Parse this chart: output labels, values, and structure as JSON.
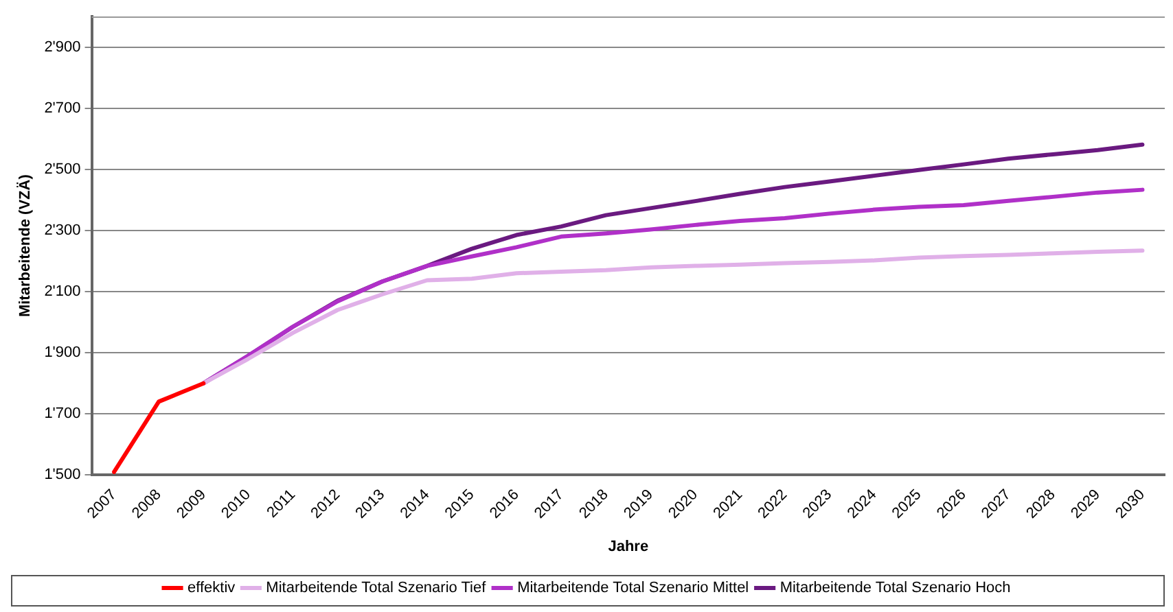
{
  "chart_data": {
    "type": "line",
    "xlabel": "Jahre",
    "ylabel": "Mitarbeitende (VZÄ)",
    "categories": [
      "2007",
      "2008",
      "2009",
      "2010",
      "2011",
      "2012",
      "2013",
      "2014",
      "2015",
      "2016",
      "2017",
      "2018",
      "2019",
      "2020",
      "2021",
      "2022",
      "2023",
      "2024",
      "2025",
      "2026",
      "2027",
      "2028",
      "2029",
      "2030"
    ],
    "ylim": [
      1500,
      3000
    ],
    "yticks": [
      {
        "value": 1500,
        "label": "1'500"
      },
      {
        "value": 1700,
        "label": "1'700"
      },
      {
        "value": 1900,
        "label": "1'900"
      },
      {
        "value": 2100,
        "label": "2'100"
      },
      {
        "value": 2300,
        "label": "2'300"
      },
      {
        "value": 2500,
        "label": "2'500"
      },
      {
        "value": 2700,
        "label": "2'700"
      },
      {
        "value": 2900,
        "label": "2'900"
      }
    ],
    "grid": "y",
    "legend": "bottom",
    "line_style": "solid",
    "marker": "none",
    "series": [
      {
        "name": "effektiv",
        "color": "#ff0000",
        "values": [
          1510,
          1740,
          1800,
          null,
          null,
          null,
          null,
          null,
          null,
          null,
          null,
          null,
          null,
          null,
          null,
          null,
          null,
          null,
          null,
          null,
          null,
          null,
          null,
          null
        ]
      },
      {
        "name": "Mitarbeitende Total Szenario Tief",
        "color": "#e0b0e8",
        "values": [
          null,
          null,
          1800,
          1880,
          1965,
          2040,
          2091,
          2137,
          2142,
          2160,
          2165,
          2170,
          2179,
          2184,
          2188,
          2193,
          2197,
          2202,
          2211,
          2216,
          2220,
          2225,
          2230,
          2234
        ]
      },
      {
        "name": "Mitarbeitende Total Szenario Mittel",
        "color": "#b030c8",
        "values": [
          null,
          null,
          1800,
          1890,
          1985,
          2068,
          2133,
          2184,
          2215,
          2245,
          2280,
          2290,
          2303,
          2318,
          2331,
          2340,
          2355,
          2368,
          2377,
          2383,
          2397,
          2410,
          2424,
          2433
        ]
      },
      {
        "name": "Mitarbeitende Total Szenario Hoch",
        "color": "#6a1a80",
        "values": [
          null,
          null,
          1800,
          1890,
          1985,
          2070,
          2133,
          2184,
          2240,
          2285,
          2313,
          2350,
          2373,
          2396,
          2420,
          2442,
          2460,
          2479,
          2498,
          2516,
          2535,
          2549,
          2563,
          2581
        ]
      }
    ]
  }
}
